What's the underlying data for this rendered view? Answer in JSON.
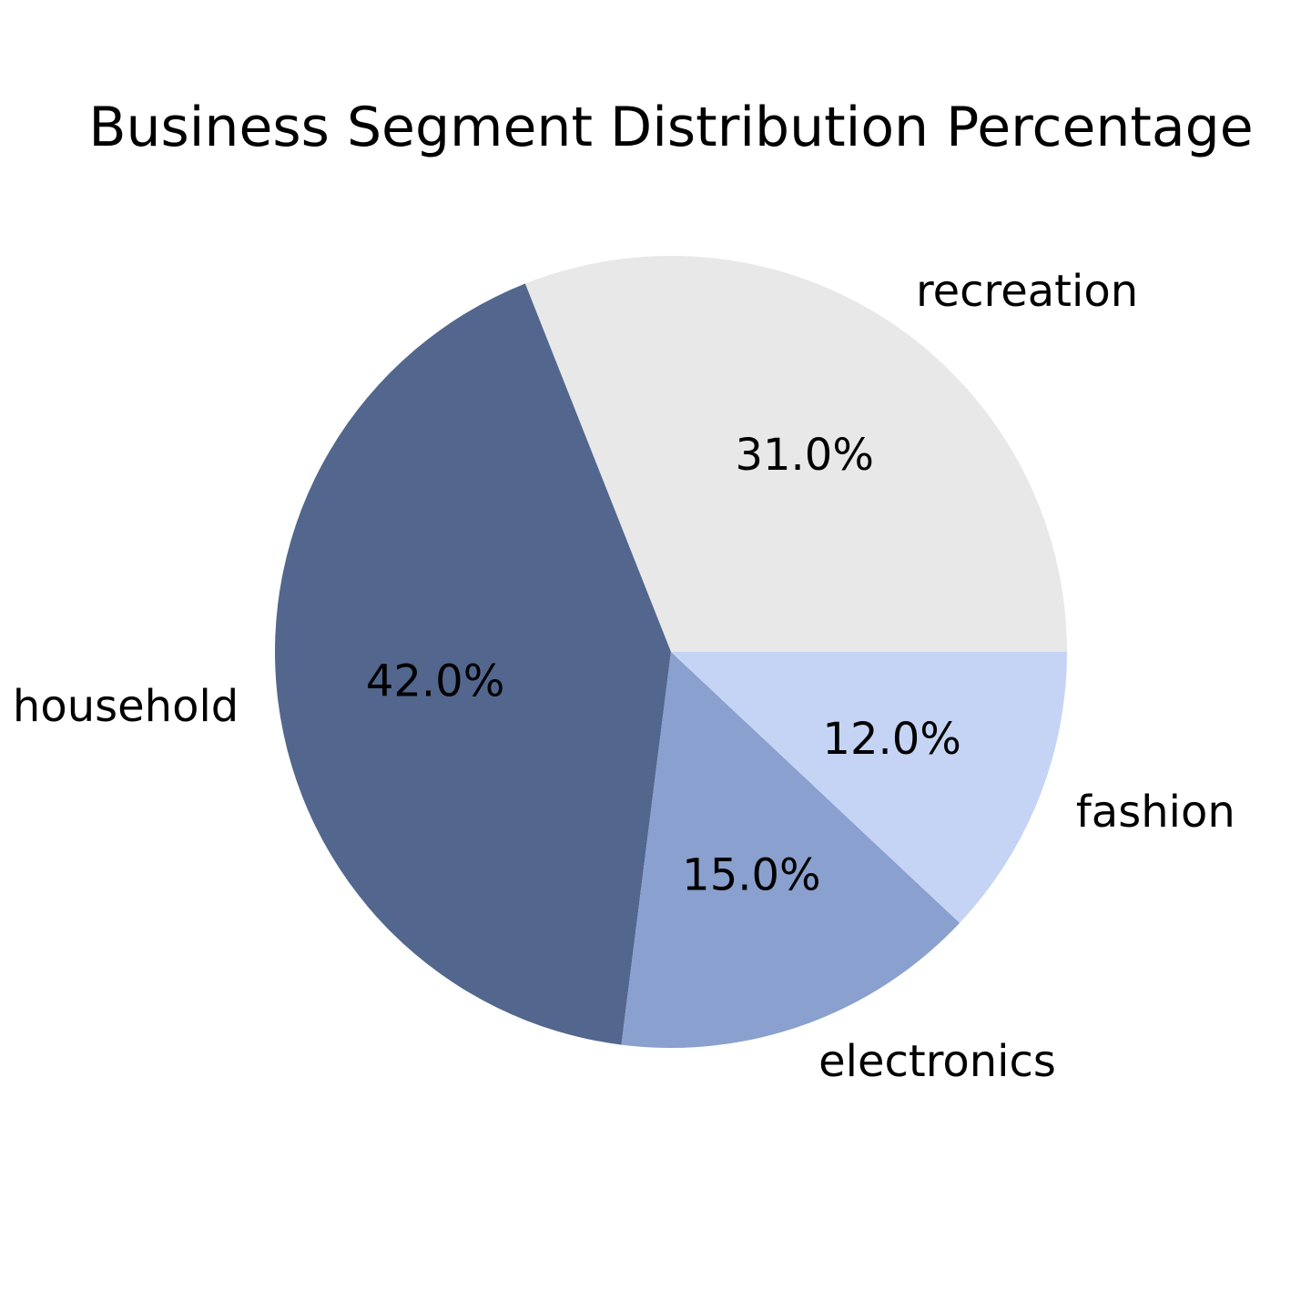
{
  "chart_data": {
    "type": "pie",
    "title": "Business Segment Distribution Percentage",
    "start_angle_deg": 0,
    "direction": "counterclockwise",
    "slices": [
      {
        "label": "recreation",
        "value": 31.0,
        "pct_label": "31.0%",
        "color": "#e8e8e8"
      },
      {
        "label": "household",
        "value": 42.0,
        "pct_label": "42.0%",
        "color": "#52668e"
      },
      {
        "label": "electronics",
        "value": 15.0,
        "pct_label": "15.0%",
        "color": "#8aa0ce"
      },
      {
        "label": "fashion",
        "value": 12.0,
        "pct_label": "12.0%",
        "color": "#c5d4f5"
      }
    ]
  }
}
